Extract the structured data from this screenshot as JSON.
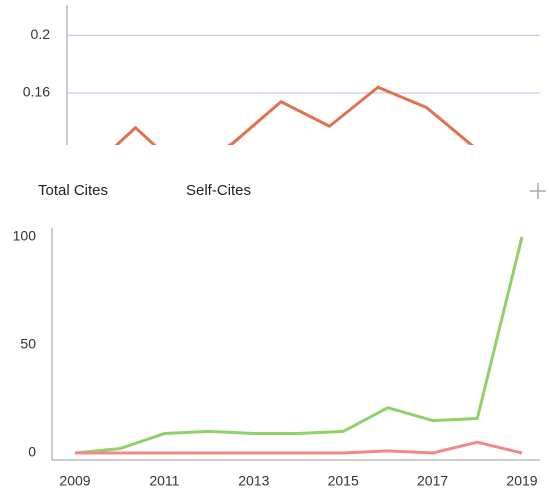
{
  "chart_data": [
    {
      "type": "line",
      "categories": [
        null,
        null,
        null,
        null,
        null,
        null,
        null,
        null,
        null
      ],
      "series": [
        {
          "color": "#e2714f",
          "values": [
            0.105,
            0.136,
            0.105,
            0.125,
            0.154,
            0.137,
            0.164,
            0.15,
            0.122
          ]
        }
      ],
      "ylim": [
        0.124,
        0.221
      ],
      "yticks": [
        0.16,
        0.2
      ],
      "grid": true
    },
    {
      "type": "line",
      "x": [
        2009,
        2010,
        2011,
        2012,
        2013,
        2014,
        2015,
        2016,
        2017,
        2018,
        2019
      ],
      "series": [
        {
          "name": "Total Cites",
          "color": "#8fd16a",
          "values": [
            0,
            2,
            9,
            10,
            9,
            9,
            10,
            21,
            15,
            16,
            100
          ]
        },
        {
          "name": "Self-Cites",
          "color": "#f08a8a",
          "values": [
            0,
            0,
            0,
            0,
            0,
            0,
            0,
            1,
            0,
            5,
            0
          ]
        }
      ],
      "xlim": [
        2009,
        2019
      ],
      "xticks": [
        2009,
        2011,
        2013,
        2015,
        2017,
        2019
      ],
      "ylim": [
        0,
        100
      ],
      "yticks": [
        0,
        50,
        100
      ],
      "grid": false
    }
  ]
}
